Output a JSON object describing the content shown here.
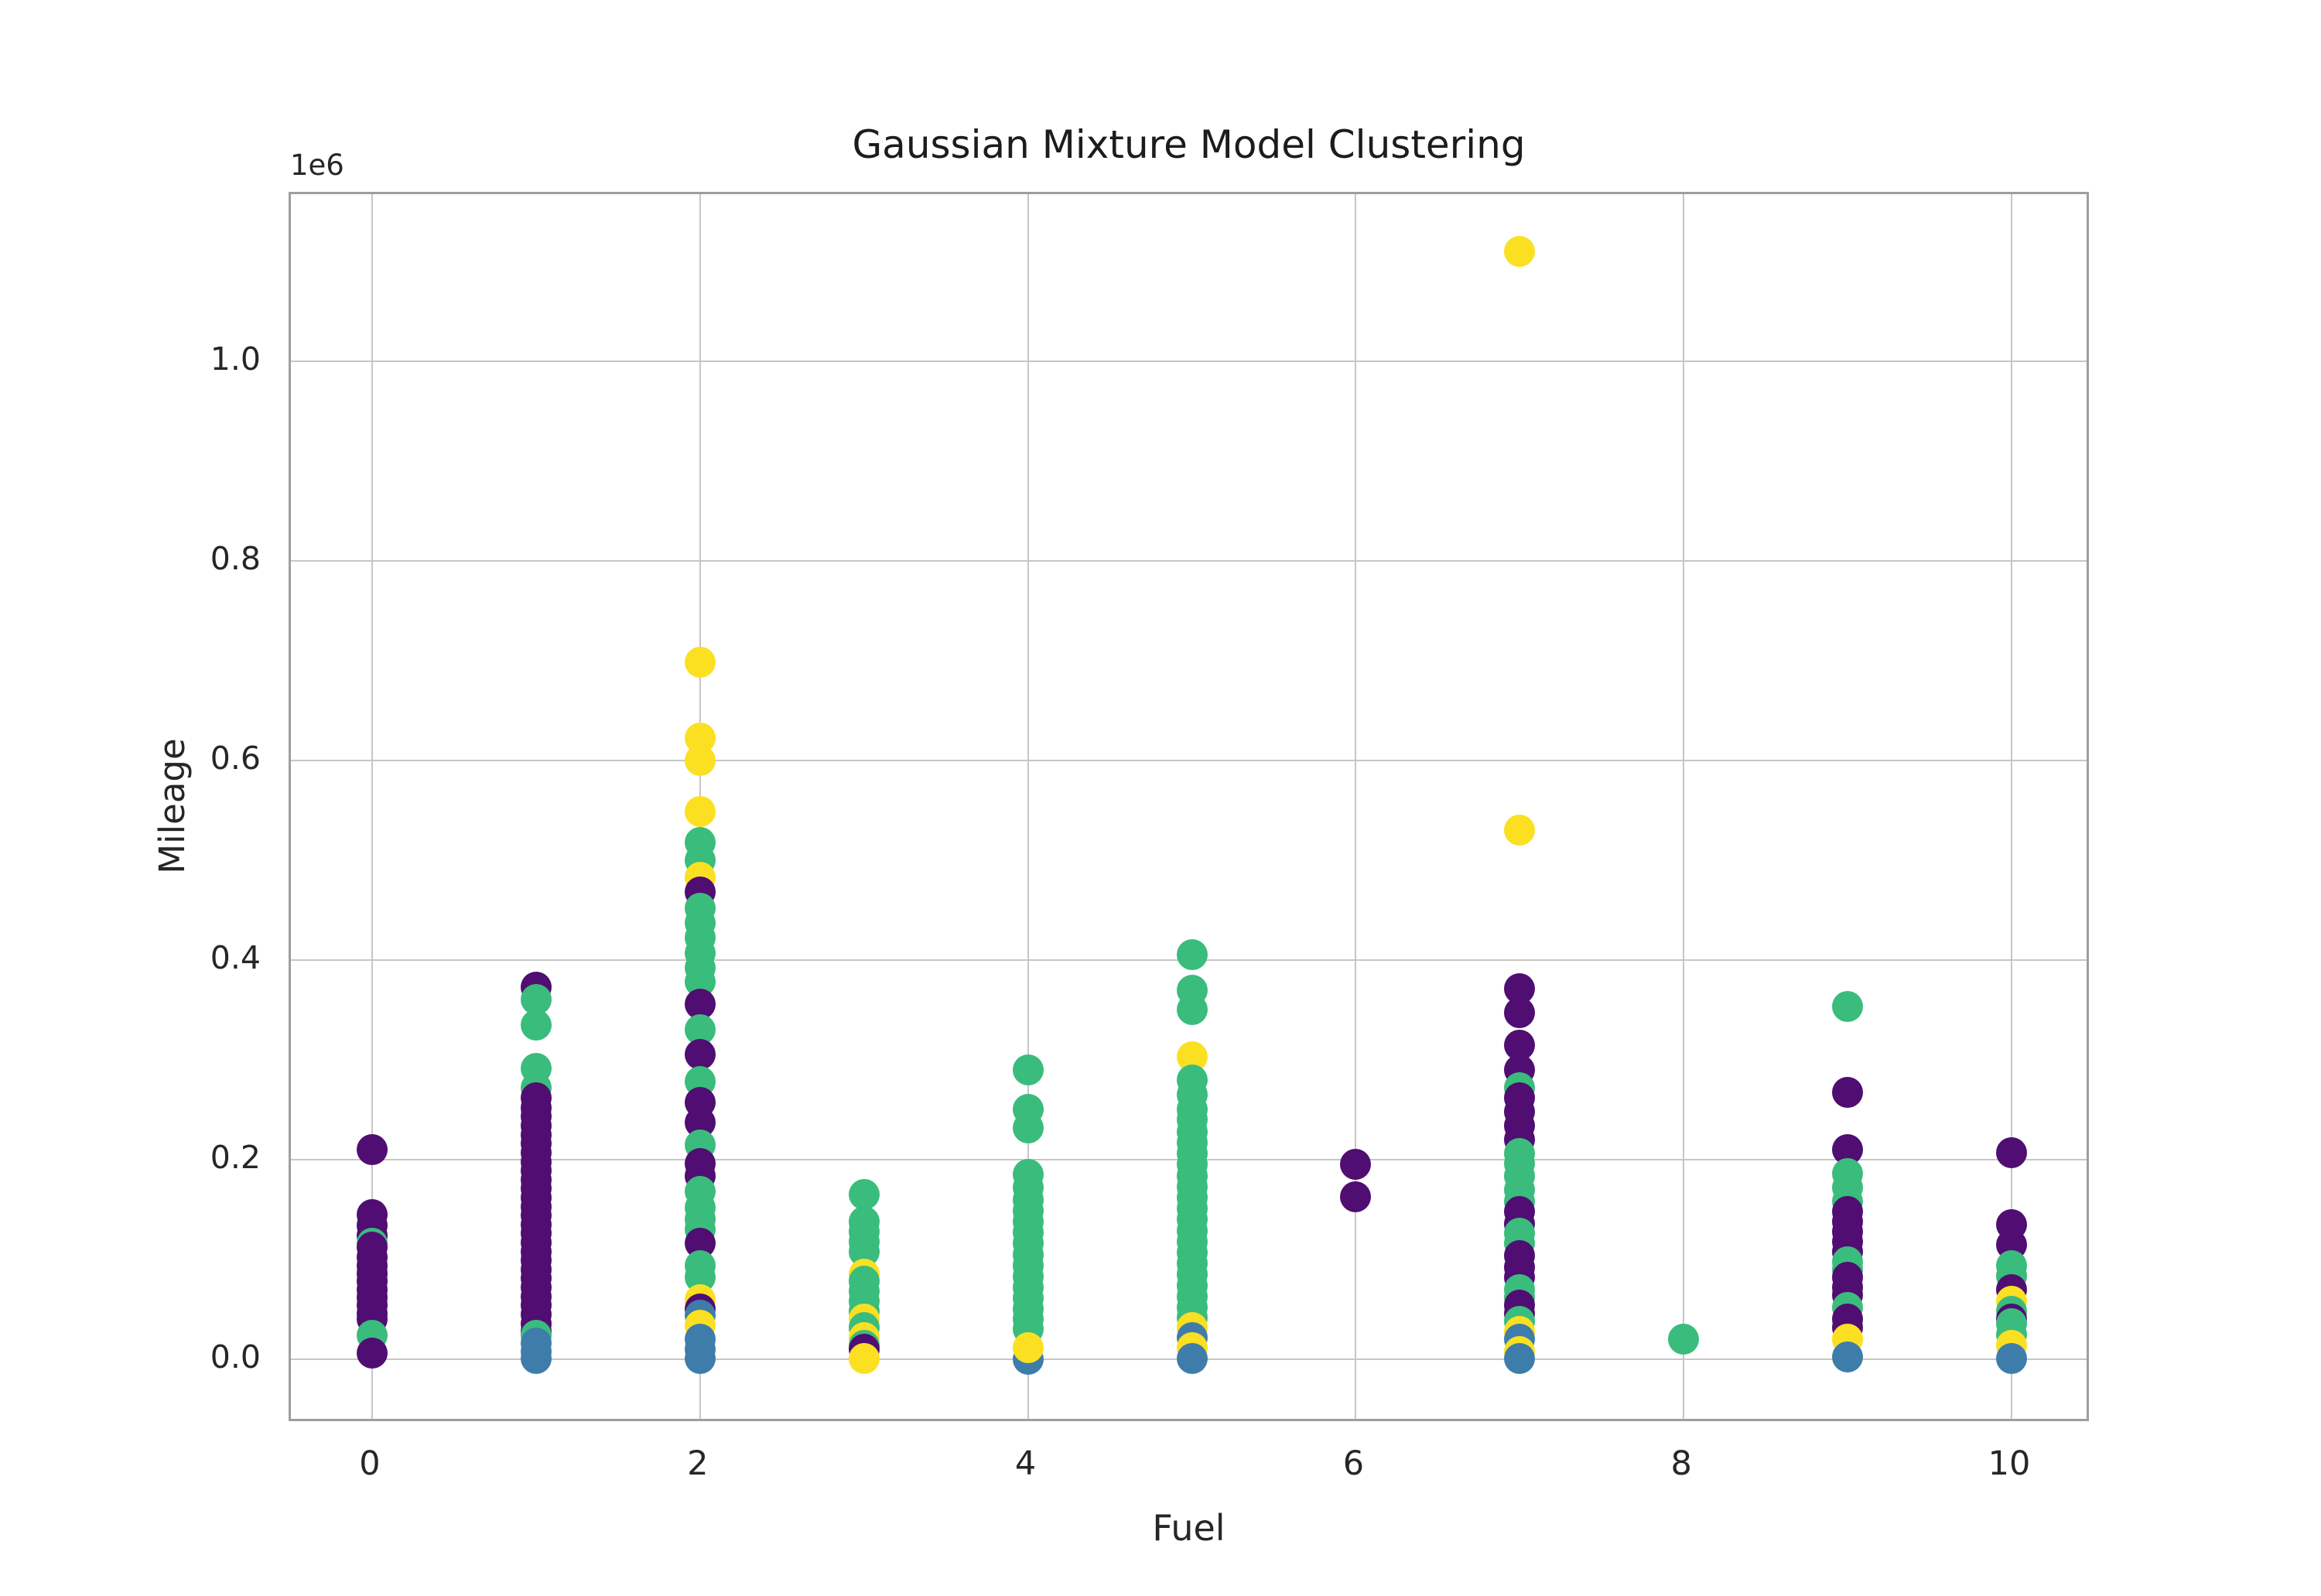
{
  "chart_data": {
    "type": "scatter",
    "title": "Gaussian Mixture Model Clustering",
    "xlabel": "Fuel",
    "ylabel": "Mileage",
    "offset_text": "1e6",
    "grid": true,
    "legend": null,
    "xlim": [
      -0.4955,
      10.486
    ],
    "ylim": [
      -64300,
      1167000
    ],
    "x_ticks": [
      {
        "label": "0",
        "value": 0
      },
      {
        "label": "2",
        "value": 2
      },
      {
        "label": "4",
        "value": 4
      },
      {
        "label": "6",
        "value": 6
      },
      {
        "label": "8",
        "value": 8
      },
      {
        "label": "10",
        "value": 10
      }
    ],
    "y_ticks": [
      {
        "label": "0.0",
        "value": 0
      },
      {
        "label": "0.2",
        "value": 200000
      },
      {
        "label": "0.4",
        "value": 400000
      },
      {
        "label": "0.6",
        "value": 600000
      },
      {
        "label": "0.8",
        "value": 800000
      },
      {
        "label": "1.0",
        "value": 1000000
      }
    ],
    "clusters": [
      {
        "name": "cluster-0-purple",
        "color": "#500d72"
      },
      {
        "name": "cluster-1-blue",
        "color": "#3e7daa"
      },
      {
        "name": "cluster-2-green",
        "color": "#3abc7d"
      },
      {
        "name": "cluster-3-yellow",
        "color": "#fbe022"
      }
    ],
    "grid_color": "#c6c6c6",
    "spine_color": "#9e9e9e",
    "points": [
      [
        0,
        210000,
        0
      ],
      [
        0,
        145000,
        0
      ],
      [
        0,
        134000,
        0
      ],
      [
        0,
        124000,
        0
      ],
      [
        0,
        116000,
        2
      ],
      [
        0,
        112000,
        0
      ],
      [
        0,
        102000,
        0
      ],
      [
        0,
        94000,
        0
      ],
      [
        0,
        86000,
        0
      ],
      [
        0,
        78000,
        0
      ],
      [
        0,
        70000,
        0
      ],
      [
        0,
        62000,
        0
      ],
      [
        0,
        54000,
        0
      ],
      [
        0,
        46000,
        0
      ],
      [
        0,
        40000,
        0
      ],
      [
        0,
        24000,
        2
      ],
      [
        0,
        6000,
        0
      ],
      [
        1,
        373000,
        0
      ],
      [
        1,
        360000,
        2
      ],
      [
        1,
        335000,
        2
      ],
      [
        1,
        291000,
        2
      ],
      [
        1,
        272000,
        2
      ],
      [
        1,
        262000,
        0
      ],
      [
        1,
        252000,
        0
      ],
      [
        1,
        243000,
        0
      ],
      [
        1,
        234000,
        0
      ],
      [
        1,
        225000,
        0
      ],
      [
        1,
        216000,
        0
      ],
      [
        1,
        207000,
        0
      ],
      [
        1,
        198000,
        0
      ],
      [
        1,
        189000,
        0
      ],
      [
        1,
        180000,
        0
      ],
      [
        1,
        171000,
        0
      ],
      [
        1,
        162000,
        0
      ],
      [
        1,
        153000,
        0
      ],
      [
        1,
        144000,
        0
      ],
      [
        1,
        135000,
        0
      ],
      [
        1,
        126000,
        0
      ],
      [
        1,
        117000,
        0
      ],
      [
        1,
        108000,
        0
      ],
      [
        1,
        99000,
        0
      ],
      [
        1,
        90000,
        0
      ],
      [
        1,
        81000,
        0
      ],
      [
        1,
        72000,
        0
      ],
      [
        1,
        63000,
        0
      ],
      [
        1,
        54000,
        0
      ],
      [
        1,
        45000,
        0
      ],
      [
        1,
        36000,
        0
      ],
      [
        1,
        28000,
        0
      ],
      [
        1,
        24000,
        2
      ],
      [
        1,
        16000,
        1
      ],
      [
        1,
        8000,
        1
      ],
      [
        1,
        1000,
        1
      ],
      [
        2,
        698000,
        3
      ],
      [
        2,
        622000,
        3
      ],
      [
        2,
        600000,
        3
      ],
      [
        2,
        549000,
        3
      ],
      [
        2,
        518000,
        2
      ],
      [
        2,
        500000,
        2
      ],
      [
        2,
        483000,
        3
      ],
      [
        2,
        468000,
        0
      ],
      [
        2,
        452000,
        2
      ],
      [
        2,
        437000,
        2
      ],
      [
        2,
        422000,
        2
      ],
      [
        2,
        407000,
        2
      ],
      [
        2,
        392000,
        2
      ],
      [
        2,
        378000,
        2
      ],
      [
        2,
        356000,
        0
      ],
      [
        2,
        330000,
        2
      ],
      [
        2,
        305000,
        0
      ],
      [
        2,
        278000,
        2
      ],
      [
        2,
        257000,
        0
      ],
      [
        2,
        237000,
        0
      ],
      [
        2,
        215000,
        2
      ],
      [
        2,
        196000,
        0
      ],
      [
        2,
        184000,
        0
      ],
      [
        2,
        168000,
        2
      ],
      [
        2,
        152000,
        2
      ],
      [
        2,
        140000,
        2
      ],
      [
        2,
        130000,
        2
      ],
      [
        2,
        116000,
        0
      ],
      [
        2,
        94000,
        2
      ],
      [
        2,
        82000,
        2
      ],
      [
        2,
        60000,
        3
      ],
      [
        2,
        50000,
        0
      ],
      [
        2,
        44000,
        1
      ],
      [
        2,
        34000,
        3
      ],
      [
        2,
        20000,
        1
      ],
      [
        2,
        10000,
        1
      ],
      [
        2,
        1000,
        1
      ],
      [
        3,
        165000,
        2
      ],
      [
        3,
        138000,
        2
      ],
      [
        3,
        128000,
        2
      ],
      [
        3,
        118000,
        2
      ],
      [
        3,
        108000,
        2
      ],
      [
        3,
        85000,
        3
      ],
      [
        3,
        78000,
        2
      ],
      [
        3,
        68000,
        2
      ],
      [
        3,
        58000,
        2
      ],
      [
        3,
        48000,
        2
      ],
      [
        3,
        40000,
        3
      ],
      [
        3,
        32000,
        2
      ],
      [
        3,
        22000,
        3
      ],
      [
        3,
        14000,
        2
      ],
      [
        3,
        10000,
        0
      ],
      [
        3,
        1000,
        3
      ],
      [
        4,
        290000,
        2
      ],
      [
        4,
        250000,
        2
      ],
      [
        4,
        232000,
        2
      ],
      [
        4,
        185000,
        2
      ],
      [
        4,
        172000,
        2
      ],
      [
        4,
        160000,
        2
      ],
      [
        4,
        149000,
        2
      ],
      [
        4,
        138000,
        2
      ],
      [
        4,
        127000,
        2
      ],
      [
        4,
        116000,
        2
      ],
      [
        4,
        105000,
        2
      ],
      [
        4,
        94000,
        2
      ],
      [
        4,
        83000,
        2
      ],
      [
        4,
        72000,
        2
      ],
      [
        4,
        61000,
        2
      ],
      [
        4,
        50000,
        2
      ],
      [
        4,
        40000,
        2
      ],
      [
        4,
        30000,
        2
      ],
      [
        4,
        0,
        1
      ],
      [
        4,
        12000,
        3
      ],
      [
        5,
        405000,
        2
      ],
      [
        5,
        370000,
        2
      ],
      [
        5,
        350000,
        2
      ],
      [
        5,
        303000,
        3
      ],
      [
        5,
        280000,
        2
      ],
      [
        5,
        265000,
        2
      ],
      [
        5,
        250000,
        2
      ],
      [
        5,
        240000,
        2
      ],
      [
        5,
        228000,
        2
      ],
      [
        5,
        217000,
        2
      ],
      [
        5,
        206000,
        2
      ],
      [
        5,
        195000,
        2
      ],
      [
        5,
        184000,
        2
      ],
      [
        5,
        173000,
        2
      ],
      [
        5,
        162000,
        2
      ],
      [
        5,
        151000,
        2
      ],
      [
        5,
        140000,
        2
      ],
      [
        5,
        129000,
        2
      ],
      [
        5,
        118000,
        2
      ],
      [
        5,
        107000,
        2
      ],
      [
        5,
        96000,
        2
      ],
      [
        5,
        85000,
        2
      ],
      [
        5,
        74000,
        2
      ],
      [
        5,
        63000,
        2
      ],
      [
        5,
        52000,
        2
      ],
      [
        5,
        42000,
        2
      ],
      [
        5,
        32000,
        3
      ],
      [
        5,
        22000,
        1
      ],
      [
        5,
        12000,
        3
      ],
      [
        5,
        1000,
        1
      ],
      [
        6,
        195000,
        0
      ],
      [
        6,
        163000,
        0
      ],
      [
        7,
        1110000,
        3
      ],
      [
        7,
        530000,
        3
      ],
      [
        7,
        371000,
        0
      ],
      [
        7,
        347000,
        0
      ],
      [
        7,
        315000,
        0
      ],
      [
        7,
        290000,
        0
      ],
      [
        7,
        272000,
        2
      ],
      [
        7,
        262000,
        0
      ],
      [
        7,
        248000,
        0
      ],
      [
        7,
        234000,
        0
      ],
      [
        7,
        220000,
        0
      ],
      [
        7,
        206000,
        2
      ],
      [
        7,
        196000,
        2
      ],
      [
        7,
        184000,
        2
      ],
      [
        7,
        170000,
        2
      ],
      [
        7,
        158000,
        2
      ],
      [
        7,
        148000,
        0
      ],
      [
        7,
        136000,
        0
      ],
      [
        7,
        126000,
        2
      ],
      [
        7,
        116000,
        2
      ],
      [
        7,
        104000,
        0
      ],
      [
        7,
        92000,
        0
      ],
      [
        7,
        82000,
        0
      ],
      [
        7,
        70000,
        2
      ],
      [
        7,
        62000,
        2
      ],
      [
        7,
        54000,
        0
      ],
      [
        7,
        46000,
        0
      ],
      [
        7,
        38000,
        2
      ],
      [
        7,
        28000,
        3
      ],
      [
        7,
        20000,
        1
      ],
      [
        7,
        8000,
        3
      ],
      [
        7,
        1000,
        1
      ],
      [
        8,
        20000,
        2
      ],
      [
        9,
        353000,
        2
      ],
      [
        9,
        267000,
        0
      ],
      [
        9,
        210000,
        0
      ],
      [
        9,
        186000,
        2
      ],
      [
        9,
        172000,
        2
      ],
      [
        9,
        158000,
        2
      ],
      [
        9,
        148000,
        0
      ],
      [
        9,
        138000,
        0
      ],
      [
        9,
        128000,
        0
      ],
      [
        9,
        118000,
        0
      ],
      [
        9,
        108000,
        0
      ],
      [
        9,
        98000,
        2
      ],
      [
        9,
        90000,
        2
      ],
      [
        9,
        82000,
        0
      ],
      [
        9,
        72000,
        0
      ],
      [
        9,
        64000,
        0
      ],
      [
        9,
        52000,
        2
      ],
      [
        9,
        40000,
        0
      ],
      [
        9,
        32000,
        0
      ],
      [
        9,
        20000,
        3
      ],
      [
        9,
        2000,
        1
      ],
      [
        10,
        207000,
        0
      ],
      [
        10,
        135000,
        0
      ],
      [
        10,
        115000,
        0
      ],
      [
        10,
        94000,
        2
      ],
      [
        10,
        84000,
        2
      ],
      [
        10,
        70000,
        0
      ],
      [
        10,
        58000,
        3
      ],
      [
        10,
        48000,
        2
      ],
      [
        10,
        40000,
        0
      ],
      [
        10,
        36000,
        2
      ],
      [
        10,
        25000,
        2
      ],
      [
        10,
        14000,
        3
      ],
      [
        10,
        1000,
        1
      ]
    ]
  }
}
